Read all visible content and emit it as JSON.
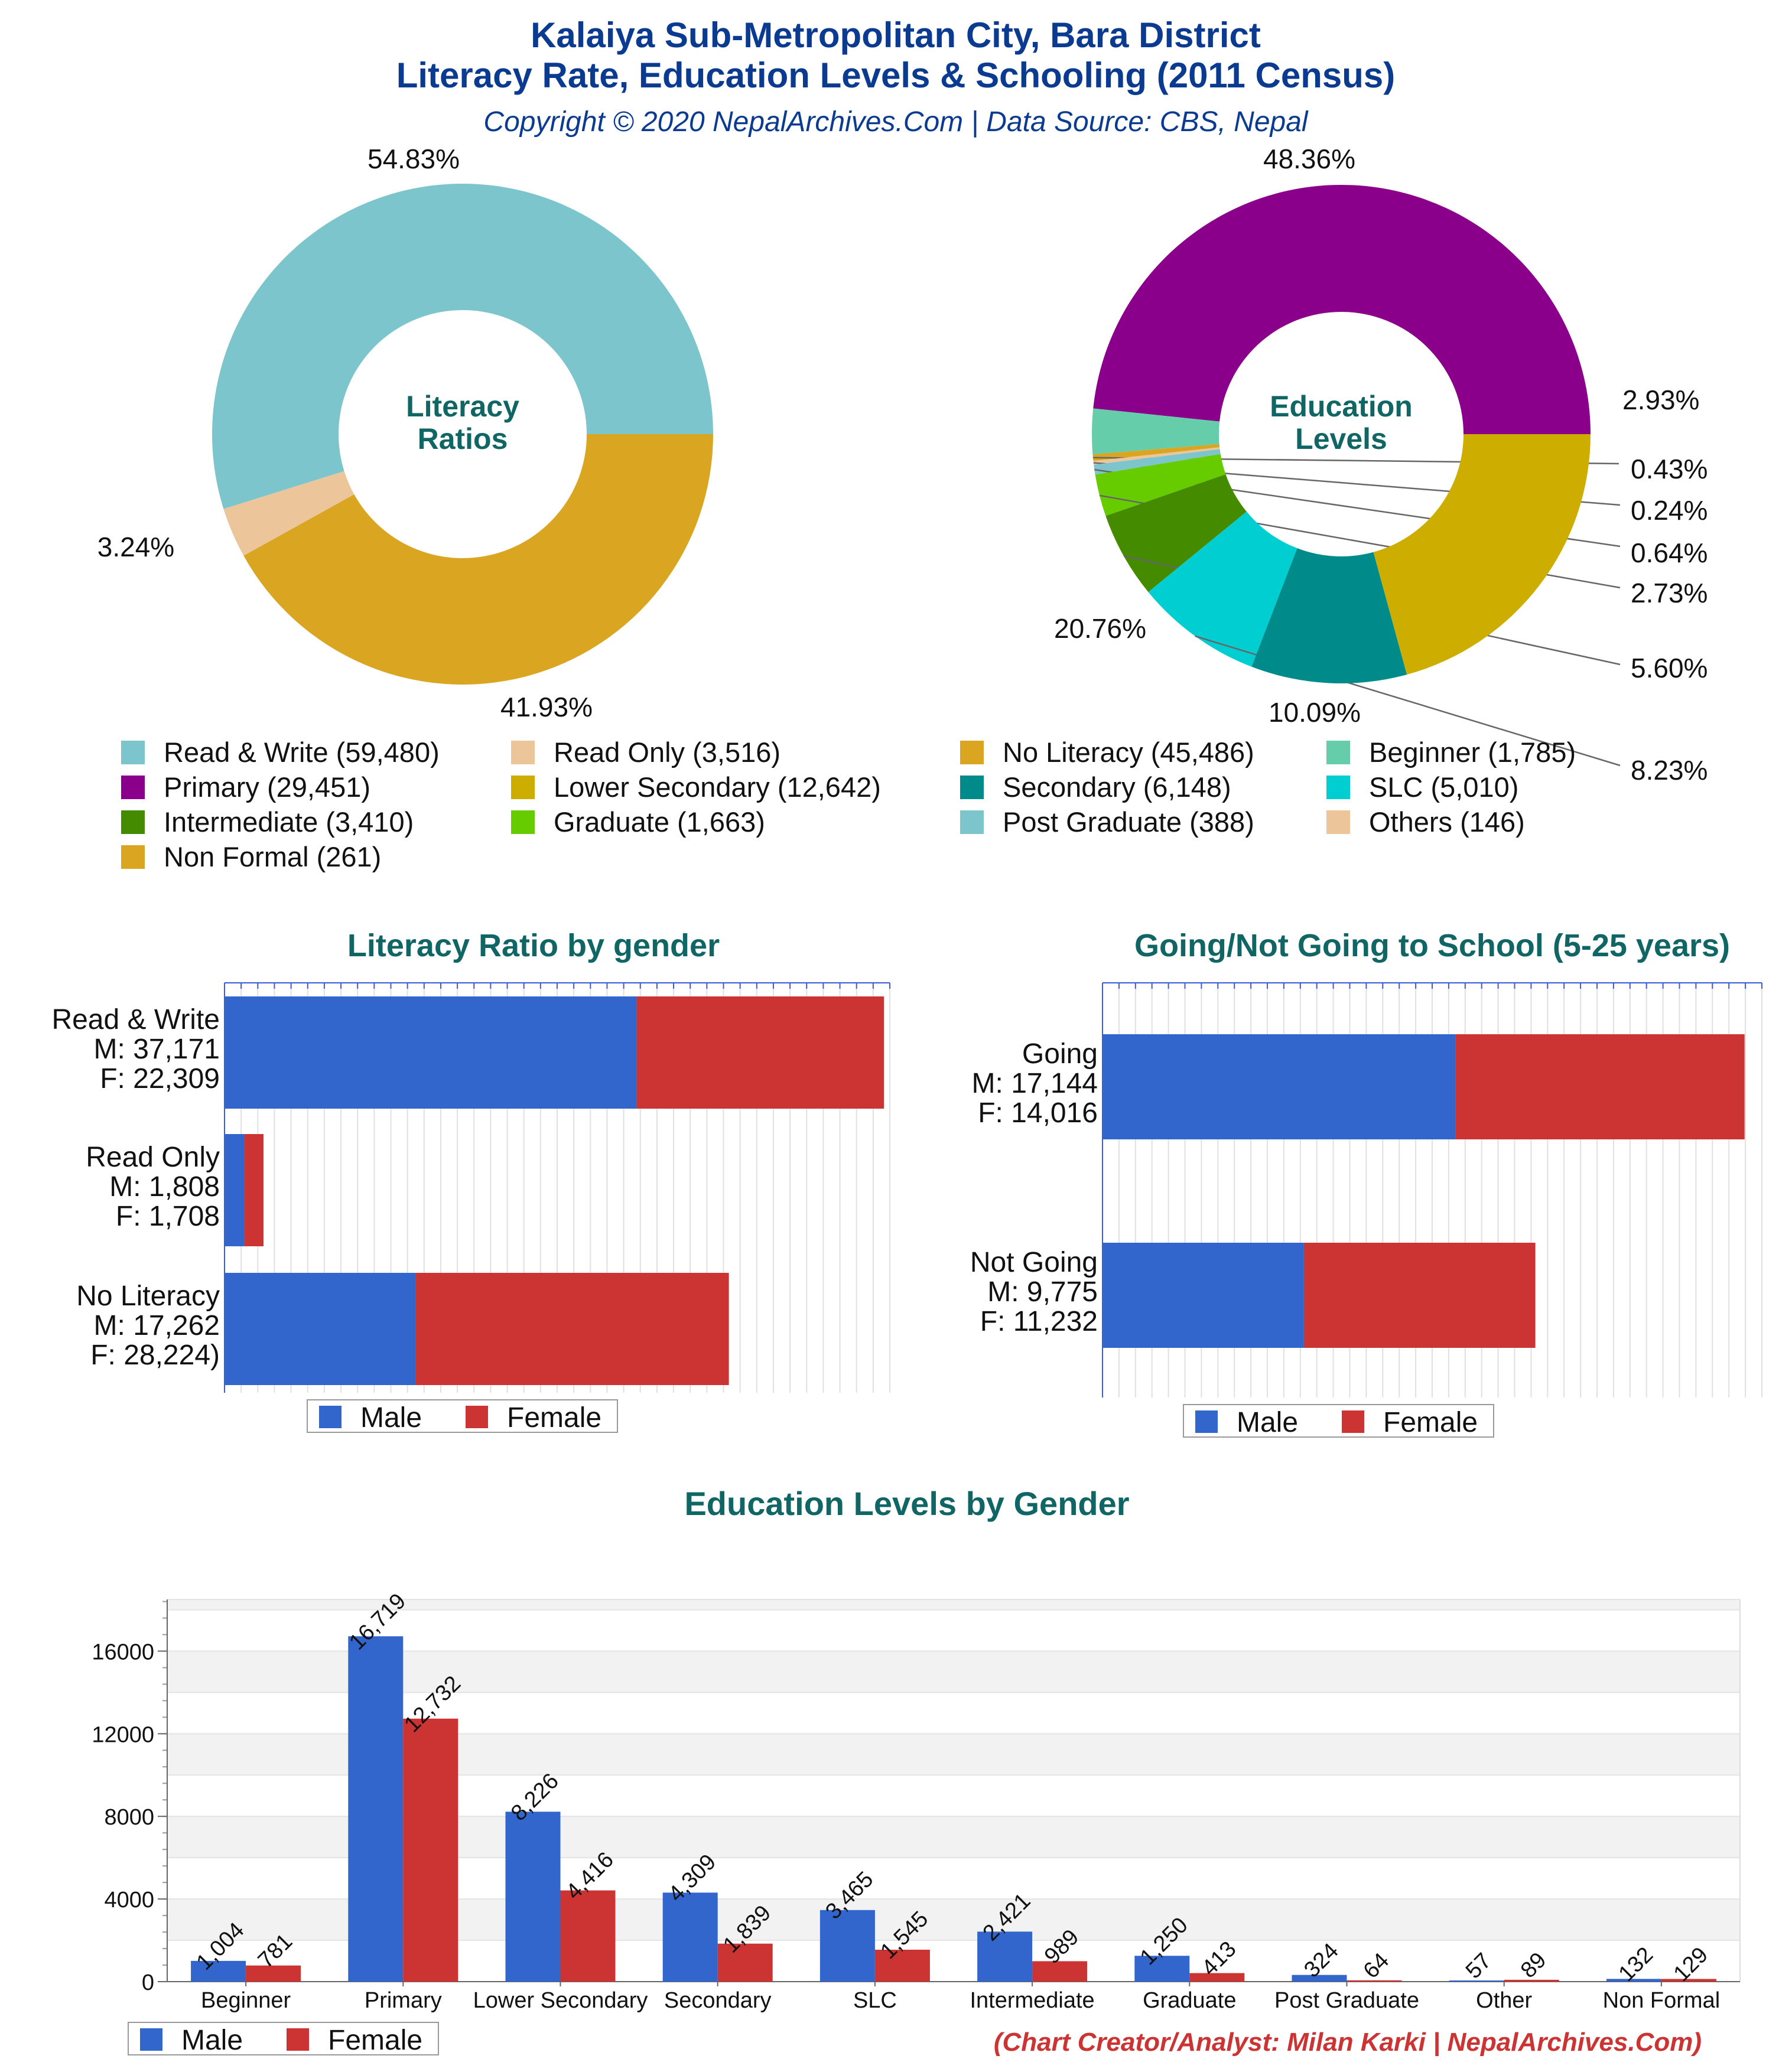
{
  "header": {
    "title_line1": "Kalaiya Sub-Metropolitan City, Bara District",
    "title_line2": "Literacy Rate, Education Levels & Schooling (2011 Census)",
    "copyright": "Copyright © 2020 NepalArchives.Com | Data Source: CBS, Nepal"
  },
  "footer": {
    "credit": "(Chart Creator/Analyst: Milan Karki | NepalArchives.Com)"
  },
  "colors": {
    "title": "#0b3b91",
    "section_title": "#0f6664",
    "male": "#3366cc",
    "female": "#cc3333",
    "credit": "#cc3333",
    "axis": "#3b5bdb",
    "grid": "#e0e0e0"
  },
  "chart_data": [
    {
      "type": "pie",
      "title": "Literacy Ratios",
      "labels": [
        "Read & Write",
        "Read Only",
        "No Literacy"
      ],
      "values": [
        59480,
        3516,
        45486
      ],
      "percent_labels": [
        "54.83%",
        "3.24%",
        "41.93%"
      ],
      "colors": [
        "#7cc5cc",
        "#ecc59a",
        "#daa520"
      ]
    },
    {
      "type": "pie",
      "title": "Education Levels",
      "labels": [
        "Primary",
        "Beginner",
        "Non Formal",
        "Others",
        "Post Graduate",
        "Graduate",
        "Intermediate",
        "SLC",
        "Secondary",
        "Lower Secondary"
      ],
      "values": [
        29451,
        1785,
        261,
        146,
        388,
        1663,
        3410,
        5010,
        6148,
        12642
      ],
      "percent_labels": [
        "48.36%",
        "2.93%",
        "0.43%",
        "0.24%",
        "0.64%",
        "2.73%",
        "5.60%",
        "8.23%",
        "10.09%",
        "20.76%"
      ],
      "colors": [
        "#8b008b",
        "#66cdaa",
        "#daa520",
        "#ecc59a",
        "#7cc5cc",
        "#66cc00",
        "#458b00",
        "#00ced1",
        "#008b8b",
        "#cdad00"
      ]
    },
    {
      "type": "bar",
      "title": "Literacy Ratio by gender",
      "categories": [
        "Read & Write",
        "Read Only",
        "No Literacy"
      ],
      "category_labels": [
        [
          "Read & Write",
          "M: 37,171",
          "F: 22,309"
        ],
        [
          "Read Only",
          "M: 1,808",
          "F: 1,708"
        ],
        [
          "No Literacy",
          "M: 17,262",
          "F: 28,224)"
        ]
      ],
      "series": [
        {
          "name": "Male",
          "values": [
            37171,
            1808,
            17262
          ]
        },
        {
          "name": "Female",
          "values": [
            22309,
            1708,
            28224
          ]
        }
      ],
      "xlim": [
        0,
        60000
      ]
    },
    {
      "type": "bar",
      "title": "Going/Not Going to School (5-25 years)",
      "categories": [
        "Going",
        "Not Going"
      ],
      "category_labels": [
        [
          "Going",
          "M: 17,144",
          "F: 14,016"
        ],
        [
          "Not Going",
          "M: 9,775",
          "F: 11,232"
        ]
      ],
      "series": [
        {
          "name": "Male",
          "values": [
            17144,
            9775
          ]
        },
        {
          "name": "Female",
          "values": [
            14016,
            11232
          ]
        }
      ],
      "xlim": [
        0,
        32000
      ]
    },
    {
      "type": "bar",
      "title": "Education Levels by Gender",
      "categories": [
        "Beginner",
        "Primary",
        "Lower Secondary",
        "Secondary",
        "SLC",
        "Intermediate",
        "Graduate",
        "Post Graduate",
        "Other",
        "Non Formal"
      ],
      "series": [
        {
          "name": "Male",
          "values": [
            1004,
            16719,
            8226,
            4309,
            3465,
            2421,
            1250,
            324,
            57,
            132
          ],
          "labels": [
            "1,004",
            "16,719",
            "8,226",
            "4,309",
            "3,465",
            "2,421",
            "1,250",
            "324",
            "57",
            "132"
          ]
        },
        {
          "name": "Female",
          "values": [
            781,
            12732,
            4416,
            1839,
            1545,
            989,
            413,
            64,
            89,
            129
          ],
          "labels": [
            "781",
            "12,732",
            "4,416",
            "1,839",
            "1,545",
            "989",
            "413",
            "64",
            "89",
            "129"
          ]
        }
      ],
      "yticks": [
        "0",
        "4000",
        "8000",
        "12000",
        "16000"
      ],
      "ylim": [
        0,
        18500
      ],
      "grid": true
    }
  ],
  "legend_main": [
    [
      "Read & Write (59,480)",
      "Read Only (3,516)",
      "No Literacy (45,486)",
      "Beginner (1,785)"
    ],
    [
      "Primary (29,451)",
      "Lower Secondary (12,642)",
      "Secondary (6,148)",
      "SLC (5,010)"
    ],
    [
      "Intermediate (3,410)",
      "Graduate (1,663)",
      "Post Graduate (388)",
      "Others (146)"
    ],
    [
      "Non Formal (261)"
    ]
  ],
  "legend_main_colors": [
    [
      "#7cc5cc",
      "#ecc59a",
      "#daa520",
      "#66cdaa"
    ],
    [
      "#8b008b",
      "#cdad00",
      "#008b8b",
      "#00ced1"
    ],
    [
      "#458b00",
      "#66cc00",
      "#7cc5cc",
      "#ecc59a"
    ],
    [
      "#daa520"
    ]
  ],
  "gender_legend": [
    "Male",
    "Female"
  ]
}
